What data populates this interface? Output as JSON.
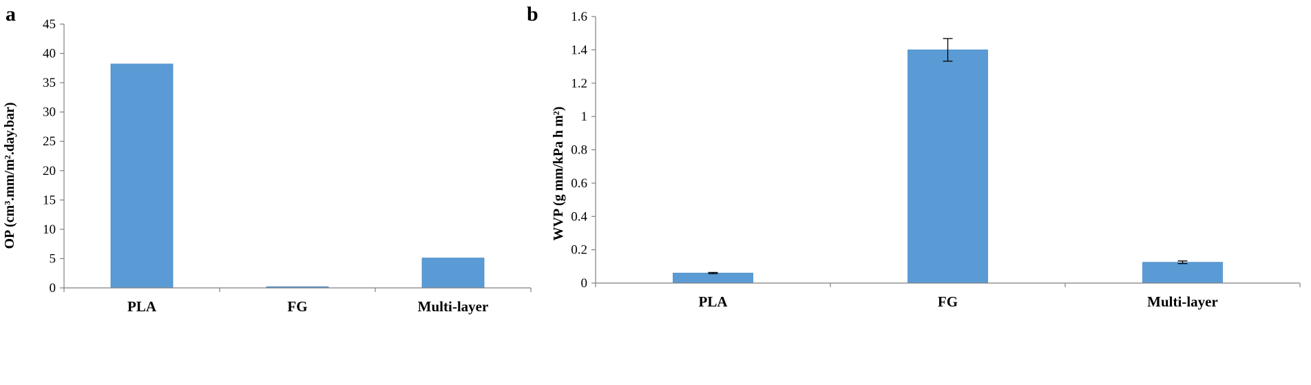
{
  "chart_data": [
    {
      "type": "bar",
      "panel_label": "a",
      "title": "",
      "categories": [
        "PLA",
        "FG",
        "Multi-layer"
      ],
      "values": [
        38.2,
        0.2,
        5.1
      ],
      "errors": null,
      "xlabel": "",
      "ylabel": "OP (cm³.mm/m².day.bar)",
      "ylim": [
        0,
        45
      ],
      "yticks": [
        0,
        5,
        10,
        15,
        20,
        25,
        30,
        35,
        40,
        45
      ],
      "ytick_labels": [
        "0",
        "5",
        "10",
        "15",
        "20",
        "25",
        "30",
        "35",
        "40",
        "45"
      ],
      "bar_color": "#5b9bd5",
      "grid": false,
      "legend": false
    },
    {
      "type": "bar",
      "panel_label": "b",
      "title": "",
      "categories": [
        "PLA",
        "FG",
        "Multi-layer"
      ],
      "values": [
        0.06,
        1.4,
        0.125
      ],
      "errors": [
        0.004,
        0.068,
        0.008
      ],
      "xlabel": "",
      "ylabel": "WVP (g mm/kPa h m²)",
      "ylim": [
        0,
        1.6
      ],
      "yticks": [
        0,
        0.2,
        0.4,
        0.6,
        0.8,
        1.0,
        1.2,
        1.4,
        1.6
      ],
      "ytick_labels": [
        "0",
        "0.2",
        "0.4",
        "0.6",
        "0.8",
        "1",
        "1.2",
        "1.4",
        "1.6"
      ],
      "bar_color": "#5b9bd5",
      "grid": false,
      "legend": false
    }
  ]
}
